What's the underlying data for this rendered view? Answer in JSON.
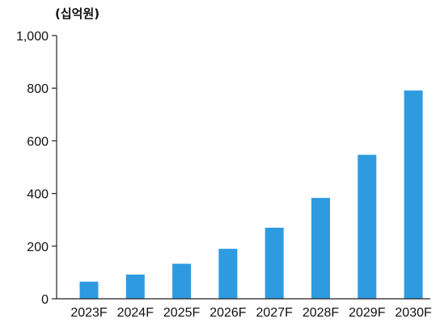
{
  "chart_data": {
    "type": "bar",
    "unit_label": "(십억원)",
    "categories": [
      "2023F",
      "2024F",
      "2025F",
      "2026F",
      "2027F",
      "2028F",
      "2029F",
      "2030F"
    ],
    "values": [
      65,
      92,
      133,
      190,
      270,
      383,
      547,
      791
    ],
    "ylim": [
      0,
      1000
    ],
    "yticks": [
      "0",
      "200",
      "400",
      "600",
      "800",
      "1,000"
    ],
    "grid": false,
    "bar_color": "#2e9be0",
    "axis_color": "#222222"
  }
}
